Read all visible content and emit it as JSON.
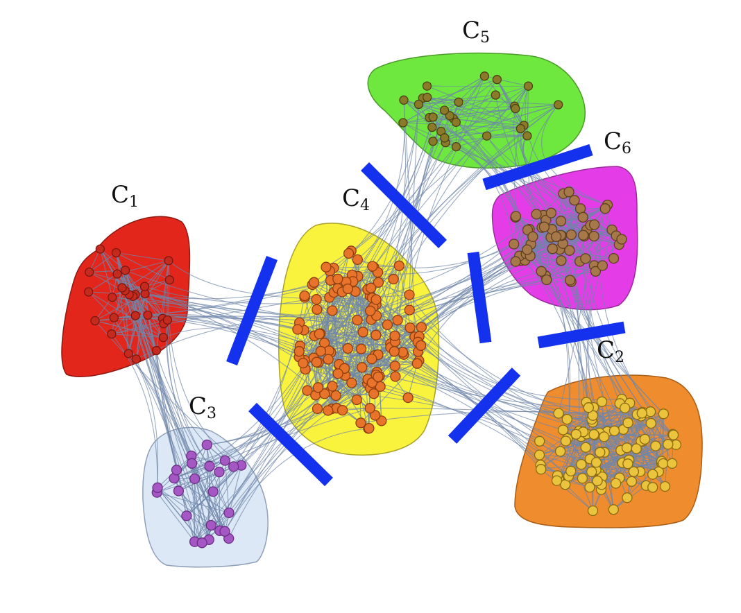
{
  "clusters": [
    {
      "id": "c1",
      "label_main": "C",
      "label_sub": "1",
      "fill": "#e2261c",
      "node_fill": "#c42a1e",
      "node_stroke": "#7a160e"
    },
    {
      "id": "c2",
      "label_main": "C",
      "label_sub": "2",
      "fill": "#ef8c2e",
      "node_fill": "#e9c43c",
      "node_stroke": "#8a6a12"
    },
    {
      "id": "c3",
      "label_main": "C",
      "label_sub": "3",
      "fill": "#dce8f6",
      "node_fill": "#a557c4",
      "node_stroke": "#6a2f85"
    },
    {
      "id": "c4",
      "label_main": "C",
      "label_sub": "4",
      "fill": "#f9f33e",
      "node_fill": "#e8732a",
      "node_stroke": "#8d3d0f"
    },
    {
      "id": "c5",
      "label_main": "C",
      "label_sub": "5",
      "fill": "#6ee83e",
      "node_fill": "#8a7a2a",
      "node_stroke": "#4a4210"
    },
    {
      "id": "c6",
      "label_main": "C",
      "label_sub": "6",
      "fill": "#e43ce6",
      "node_fill": "#a6784a",
      "node_stroke": "#5e3f1e"
    }
  ],
  "colors": {
    "cut_line": "#1432ee",
    "edge": "#6f86aa"
  }
}
